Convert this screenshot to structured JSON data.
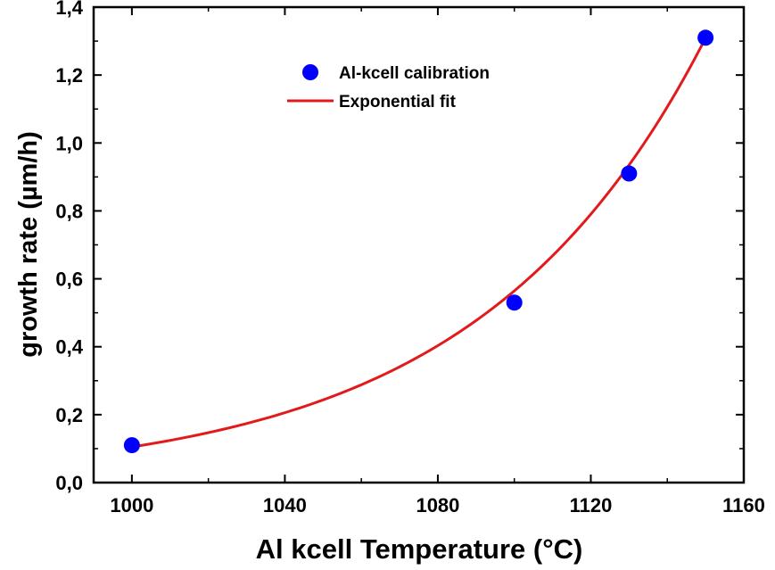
{
  "chart_data": {
    "type": "scatter",
    "xlabel": "Al kcell Temperature (°C)",
    "ylabel": "growth rate (µm/h)",
    "xlim": [
      990,
      1160
    ],
    "ylim": [
      0.0,
      1.4
    ],
    "x_ticks": [
      1000,
      1040,
      1080,
      1120,
      1160
    ],
    "x_tick_labels": [
      "1000",
      "1040",
      "1080",
      "1120",
      "1160"
    ],
    "y_ticks": [
      0.0,
      0.2,
      0.4,
      0.6,
      0.8,
      1.0,
      1.2,
      1.4
    ],
    "y_tick_labels": [
      "0,0",
      "0,2",
      "0,4",
      "0,6",
      "0,8",
      "1,0",
      "1,2",
      "1,4"
    ],
    "grid": false,
    "legend_position": "top-center",
    "series": [
      {
        "name": "Al-kcell calibration",
        "kind": "scatter",
        "color": "#0000ff",
        "x": [
          1000,
          1100,
          1130,
          1150
        ],
        "y": [
          0.11,
          0.53,
          0.91,
          1.31
        ]
      },
      {
        "name": "Exponential fit",
        "kind": "line",
        "color": "#e31a1c",
        "model": "y = 0.105 * exp(0.01682 * (x - 1000))",
        "x_range": [
          1000,
          1150
        ]
      }
    ]
  }
}
